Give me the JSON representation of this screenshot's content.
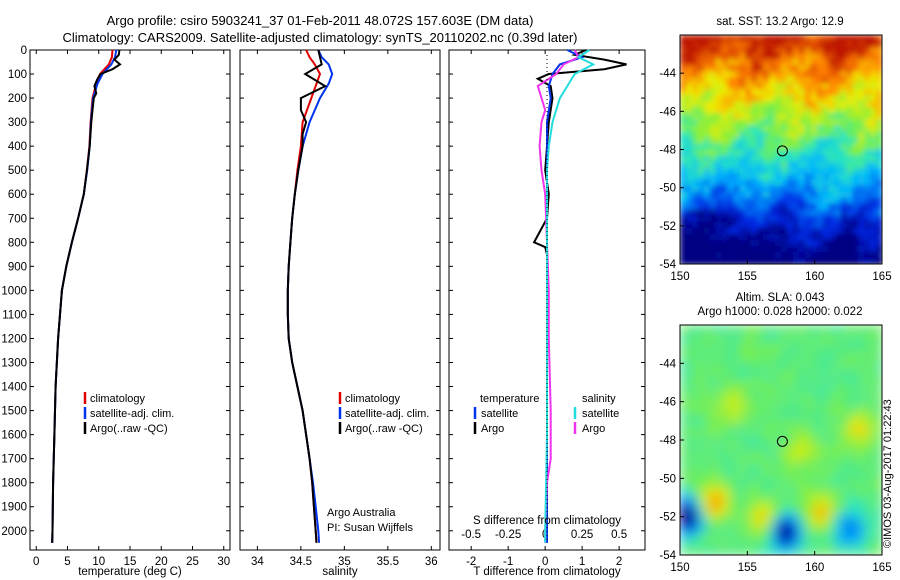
{
  "title": {
    "line1": "Argo profile: csiro 5903241_37 01-Feb-2011 48.072S 157.603E (DM data)",
    "line2": "Climatology: CARS2009. Satellite-adjusted climatology: synTS_20110202.nc (0.39d later)"
  },
  "credits": {
    "group": "Argo Australia",
    "pi": "PI: Susan Wijffels",
    "stamp": "©IMOS 03-Aug-2017 01:22:43"
  },
  "colors": {
    "climatology": "#e00000",
    "satellite": "#0033ee",
    "argo": "#000000",
    "salinity_sat": "#22dddd",
    "salinity_argo": "#ee33ee"
  },
  "chart_data": [
    {
      "type": "line",
      "panel": "temperature",
      "xlabel": "temperature (deg C)",
      "ylabel": "",
      "xlim": [
        -1,
        31
      ],
      "ylim": [
        2080,
        0
      ],
      "xticks": [
        "0",
        "5",
        "10",
        "15",
        "20",
        "25",
        "30"
      ],
      "yticks": [
        "0",
        "100",
        "200",
        "300",
        "400",
        "500",
        "600",
        "700",
        "800",
        "900",
        "1000",
        "1100",
        "1200",
        "1300",
        "1400",
        "1500",
        "1600",
        "1700",
        "1800",
        "1900",
        "2000"
      ],
      "legend": [
        "climatology",
        "satellite-adj. clim.",
        "Argo(..raw -QC)"
      ],
      "series": [
        {
          "name": "climatology",
          "depth": [
            0,
            30,
            60,
            100,
            140,
            200,
            300,
            400,
            500,
            600,
            700,
            800,
            900,
            1000,
            1200,
            1400,
            1600,
            1800,
            2000,
            2050
          ],
          "values": [
            12.2,
            12.1,
            11.6,
            10.2,
            9.6,
            9.0,
            8.7,
            8.5,
            8.1,
            7.6,
            6.7,
            5.7,
            4.8,
            4.1,
            3.5,
            3.1,
            2.9,
            2.7,
            2.6,
            2.55
          ]
        },
        {
          "name": "satellite-adj. clim.",
          "depth": [
            0,
            30,
            60,
            100,
            140,
            200,
            300,
            400,
            500,
            600,
            700,
            800,
            900,
            1000,
            1200,
            1400,
            1600,
            1800,
            2000,
            2050
          ],
          "values": [
            12.8,
            12.6,
            12.0,
            10.6,
            9.8,
            9.1,
            8.75,
            8.55,
            8.15,
            7.6,
            6.7,
            5.7,
            4.8,
            4.1,
            3.5,
            3.1,
            2.9,
            2.7,
            2.6,
            2.55
          ]
        },
        {
          "name": "Argo(..raw -QC)",
          "depth": [
            0,
            20,
            40,
            60,
            80,
            100,
            120,
            150,
            180,
            200,
            250,
            300,
            400,
            500,
            600,
            700,
            800,
            900,
            1000,
            1200,
            1400,
            1600,
            1800,
            2000,
            2050
          ],
          "values": [
            13.3,
            13.2,
            12.5,
            13.4,
            12.2,
            10.3,
            9.8,
            9.3,
            9.6,
            9.2,
            9.0,
            8.8,
            8.55,
            8.1,
            7.6,
            6.7,
            5.7,
            4.8,
            4.1,
            3.5,
            3.1,
            2.9,
            2.7,
            2.6,
            2.55
          ]
        }
      ]
    },
    {
      "type": "line",
      "panel": "salinity",
      "xlabel": "salinity",
      "ylabel": "",
      "xlim": [
        33.8,
        36.1
      ],
      "ylim": [
        2080,
        0
      ],
      "xticks": [
        "34",
        "34.5",
        "35",
        "35.5",
        "36"
      ],
      "legend": [
        "climatology",
        "satellite-adj. clim.",
        "Argo(..raw -QC)"
      ],
      "series": [
        {
          "name": "climatology",
          "depth": [
            0,
            30,
            60,
            100,
            200,
            300,
            400,
            500,
            600,
            700,
            800,
            900,
            1000,
            1100,
            1200,
            1300,
            1400,
            1500,
            1600,
            1700,
            1800,
            1900,
            2000,
            2050
          ],
          "values": [
            34.56,
            34.6,
            34.66,
            34.72,
            34.62,
            34.52,
            34.5,
            34.46,
            34.43,
            34.4,
            34.38,
            34.36,
            34.35,
            34.35,
            34.36,
            34.4,
            34.46,
            34.52,
            34.56,
            34.6,
            34.63,
            34.65,
            34.67,
            34.68
          ]
        },
        {
          "name": "satellite-adj. clim.",
          "depth": [
            0,
            30,
            60,
            100,
            140,
            200,
            300,
            400,
            500,
            600,
            700,
            800,
            900,
            1000,
            1100,
            1200,
            1300,
            1400,
            1500,
            1600,
            1700,
            1800,
            1900,
            2000,
            2050
          ],
          "values": [
            34.7,
            34.74,
            34.82,
            34.86,
            34.82,
            34.72,
            34.6,
            34.52,
            34.47,
            34.43,
            34.4,
            34.38,
            34.36,
            34.35,
            34.35,
            34.36,
            34.4,
            34.46,
            34.52,
            34.56,
            34.6,
            34.64,
            34.67,
            34.7,
            34.71
          ]
        },
        {
          "name": "Argo(..raw -QC)",
          "depth": [
            0,
            30,
            60,
            100,
            150,
            200,
            250,
            300,
            350,
            400,
            500,
            600,
            700,
            800,
            900,
            1000,
            1100,
            1200,
            1300,
            1400,
            1500,
            1600,
            1700,
            1800,
            1900,
            2000,
            2050
          ],
          "values": [
            34.7,
            34.72,
            34.74,
            34.55,
            34.78,
            34.5,
            34.5,
            34.56,
            34.52,
            34.52,
            34.47,
            34.43,
            34.4,
            34.38,
            34.36,
            34.35,
            34.35,
            34.36,
            34.4,
            34.46,
            34.52,
            34.56,
            34.6,
            34.63,
            34.65,
            34.67,
            34.68
          ]
        }
      ]
    },
    {
      "type": "line",
      "panel": "difference",
      "xlabel": "T difference from climatology",
      "xlabel_top": "S difference from climatology",
      "xlim": [
        -2.6,
        2.7
      ],
      "ylim": [
        2080,
        0
      ],
      "xticks": [
        "-2",
        "-1",
        "0",
        "1",
        "2"
      ],
      "xticks_s": [
        "-0.5",
        "-0.25",
        "0",
        "0.25",
        "0.5"
      ],
      "legend_headers": [
        "temperature",
        "salinity"
      ],
      "legend": [
        "satellite",
        "Argo",
        "satellite",
        "Argo"
      ],
      "series": [
        {
          "name": "satellite",
          "depth": [
            0,
            30,
            60,
            100,
            150,
            200,
            300,
            400,
            500,
            700,
            900,
            1200,
            1600,
            2000,
            2050
          ],
          "values": [
            0.6,
            1.0,
            0.4,
            0.2,
            0.1,
            0.15,
            0.05,
            0.05,
            0.05,
            0.05,
            0.05,
            0.05,
            0.05,
            0.05,
            0.05
          ]
        },
        {
          "name": "Argo",
          "depth": [
            0,
            20,
            40,
            60,
            80,
            100,
            120,
            150,
            200,
            300,
            400,
            500,
            600,
            700,
            800,
            820,
            850,
            900,
            1000,
            1200,
            1600,
            2000,
            2050
          ],
          "values": [
            1.1,
            0.8,
            1.6,
            2.2,
            1.6,
            0.1,
            -0.2,
            0.15,
            0.2,
            0.1,
            0.05,
            0.0,
            0.1,
            0.05,
            -0.3,
            0.0,
            0.05,
            0.05,
            0.05,
            0.05,
            0.05,
            0.05,
            0.05
          ]
        },
        {
          "name": "satellite",
          "depth": [
            0,
            30,
            60,
            100,
            150,
            200,
            300,
            400,
            500,
            700,
            900,
            1200,
            1600,
            2000,
            2050
          ],
          "values": [
            1.2,
            0.9,
            1.3,
            0.8,
            0.6,
            0.4,
            0.2,
            0.1,
            0.05,
            0.05,
            0.05,
            0.05,
            0.05,
            0.0,
            0.0
          ]
        },
        {
          "name": "Argo",
          "depth": [
            0,
            30,
            60,
            100,
            150,
            200,
            250,
            300,
            400,
            500,
            600,
            800,
            1000,
            1200,
            1500,
            1700,
            1800,
            2000,
            2050
          ],
          "values": [
            0.8,
            0.9,
            0.5,
            0.3,
            -0.2,
            -0.1,
            0.0,
            -0.1,
            -0.15,
            -0.1,
            0.0,
            0.05,
            0.1,
            0.1,
            0.15,
            0.15,
            0.05,
            0.0,
            0.0
          ]
        }
      ]
    },
    {
      "type": "heatmap",
      "panel": "sst_map",
      "title": "sat. SST: 13.2 Argo: 12.9",
      "xlim": [
        150,
        165
      ],
      "ylim": [
        -54,
        -42
      ],
      "xticks": [
        "150",
        "155",
        "160",
        "165"
      ],
      "yticks": [
        "-44",
        "-46",
        "-48",
        "-50",
        "-52",
        "-54"
      ],
      "marker": {
        "lon": 157.603,
        "lat": -48.072
      }
    },
    {
      "type": "heatmap",
      "panel": "sla_map",
      "title": "Altim. SLA: 0.043",
      "subtitle": "Argo h1000: 0.028 h2000: 0.022",
      "xlim": [
        150,
        165
      ],
      "ylim": [
        -54,
        -42
      ],
      "xticks": [
        "150",
        "155",
        "160",
        "165"
      ],
      "yticks": [
        "-44",
        "-46",
        "-48",
        "-50",
        "-52",
        "-54"
      ],
      "marker": {
        "lon": 157.603,
        "lat": -48.072
      }
    }
  ]
}
